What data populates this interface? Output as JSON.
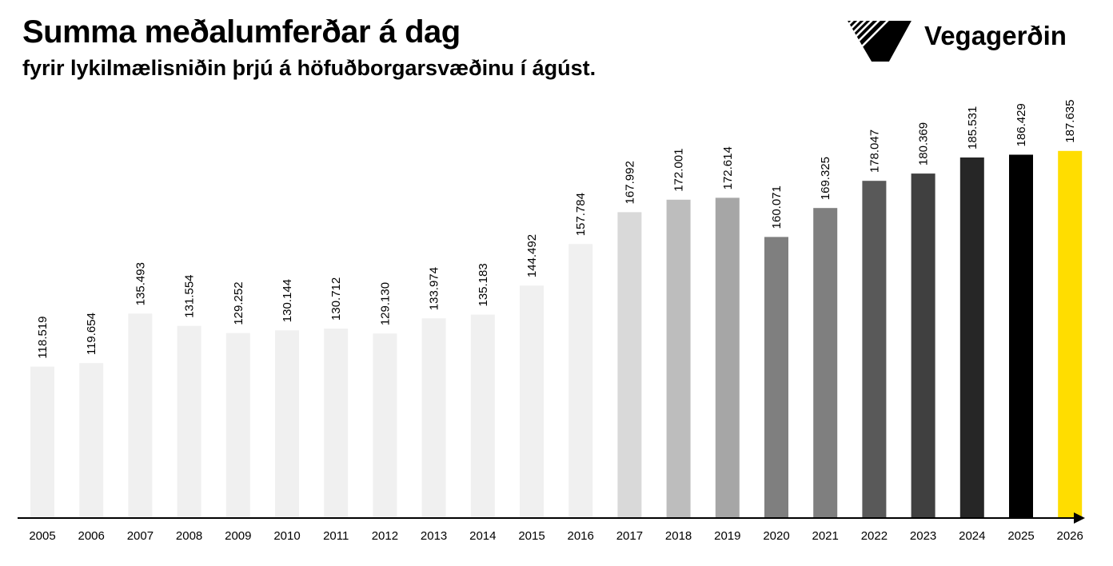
{
  "header": {
    "title": "Summa meðalumferðar á dag",
    "subtitle": "fyrir lykilmælisniðin þrjú á höfuðborgarsvæðinu í ágúst."
  },
  "logo": {
    "text": "Vegagerðin",
    "icon": "vegagerdin-stripes-logo"
  },
  "chart_data": {
    "type": "bar",
    "categories": [
      "2005",
      "2006",
      "2007",
      "2008",
      "2009",
      "2010",
      "2011",
      "2012",
      "2013",
      "2014",
      "2015",
      "2016",
      "2017",
      "2018",
      "2019",
      "2020",
      "2021",
      "2022",
      "2023",
      "2024",
      "2025",
      "2026"
    ],
    "values": [
      118519,
      119654,
      135493,
      131554,
      129252,
      130144,
      130712,
      129130,
      133974,
      135183,
      144492,
      157784,
      167992,
      172001,
      172614,
      160071,
      169325,
      178047,
      180369,
      185531,
      186429,
      187635
    ],
    "value_labels": [
      "118.519",
      "119.654",
      "135.493",
      "131.554",
      "129.252",
      "130.144",
      "130.712",
      "129.130",
      "133.974",
      "135.183",
      "144.492",
      "157.784",
      "167.992",
      "172.001",
      "172.614",
      "160.071",
      "169.325",
      "178.047",
      "180.369",
      "185.531",
      "186.429",
      "187.635"
    ],
    "colors": [
      "#f0f0f0",
      "#f0f0f0",
      "#f0f0f0",
      "#f0f0f0",
      "#f0f0f0",
      "#f0f0f0",
      "#f0f0f0",
      "#f0f0f0",
      "#f0f0f0",
      "#f0f0f0",
      "#f0f0f0",
      "#f0f0f0",
      "#d9d9d9",
      "#bdbdbd",
      "#a6a6a6",
      "#7f7f7f",
      "#7f7f7f",
      "#595959",
      "#404040",
      "#262626",
      "#000000",
      "#ffdd00"
    ],
    "ylim": [
      70000,
      195000
    ],
    "grid": false,
    "xlabel": "",
    "ylabel": ""
  }
}
